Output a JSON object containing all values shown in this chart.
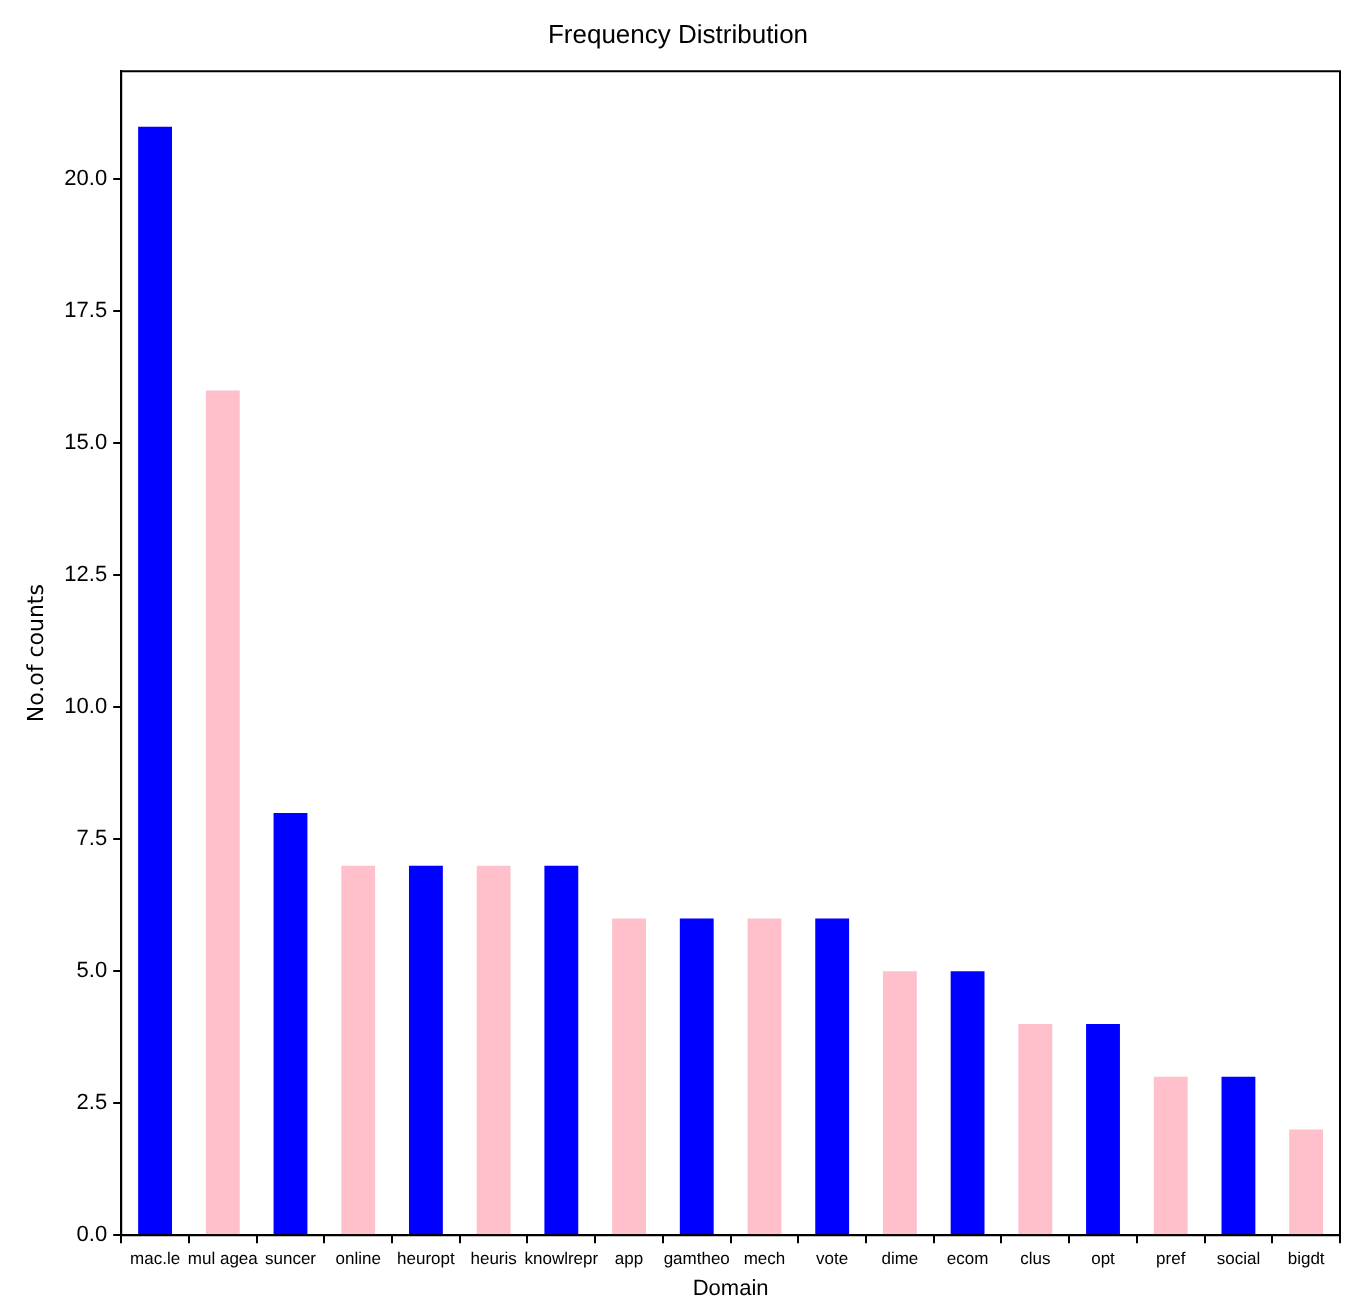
{
  "chart_data": {
    "type": "bar",
    "title": "Frequency Distribution",
    "xlabel": "Domain",
    "ylabel": "No.of counts",
    "categories": [
      "mac.le",
      "mul agea",
      "suncer",
      "online",
      "heuropt",
      "heuris",
      "knowlrepr",
      "app",
      "gamtheo",
      "mech",
      "vote",
      "dime",
      "ecom",
      "clus",
      "opt",
      "pref",
      "social",
      "bigdt"
    ],
    "values": [
      21,
      16,
      8,
      7,
      7,
      7,
      7,
      6,
      6,
      6,
      6,
      5,
      5,
      4,
      4,
      3,
      3,
      2
    ],
    "colors": [
      "#0000ff",
      "#ffc0cb",
      "#0000ff",
      "#ffc0cb",
      "#0000ff",
      "#ffc0cb",
      "#0000ff",
      "#ffc0cb",
      "#0000ff",
      "#ffc0cb",
      "#0000ff",
      "#ffc0cb",
      "#0000ff",
      "#ffc0cb",
      "#0000ff",
      "#ffc0cb",
      "#0000ff",
      "#ffc0cb"
    ],
    "ylim": [
      0,
      22.05
    ],
    "yticks": [
      {
        "value": 0,
        "label": "0.0"
      },
      {
        "value": 2.5,
        "label": "2.5"
      },
      {
        "value": 5,
        "label": "5.0"
      },
      {
        "value": 7.5,
        "label": "7.5"
      },
      {
        "value": 10,
        "label": "10.0"
      },
      {
        "value": 12.5,
        "label": "12.5"
      },
      {
        "value": 15,
        "label": "15.0"
      },
      {
        "value": 17.5,
        "label": "17.5"
      },
      {
        "value": 20,
        "label": "20.0"
      }
    ],
    "grid": false,
    "legend": false
  }
}
